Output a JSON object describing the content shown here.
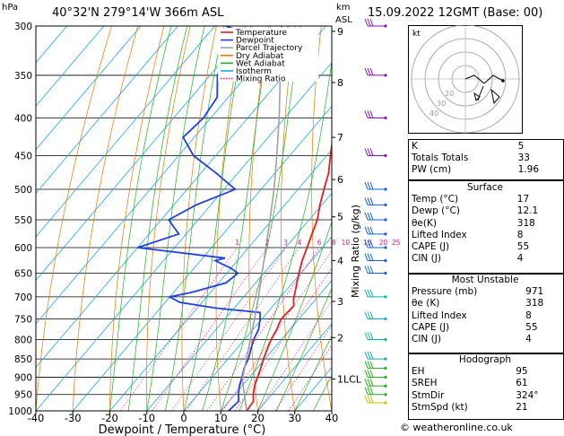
{
  "header": {
    "station": "40°32'N 279°14'W 366m ASL",
    "date": "15.09.2022 12GMT (Base: 00)",
    "p_unit": "hPa",
    "km_unit": "km",
    "asl": "ASL",
    "footer": "© weatheronline.co.uk"
  },
  "chart_data": {
    "type": "line",
    "title": "",
    "xlabel": "Dewpoint / Temperature (°C)",
    "ylabel": "Mixing Ratio (g/kg)",
    "xlim": [
      -40,
      40
    ],
    "ylim": [
      1000,
      300
    ],
    "y_scale": "log",
    "pressure_ticks": [
      300,
      350,
      400,
      450,
      500,
      550,
      600,
      650,
      700,
      750,
      800,
      850,
      900,
      950,
      1000
    ],
    "temp_ticks": [
      -40,
      -30,
      -20,
      -10,
      0,
      10,
      20,
      30,
      40
    ],
    "km_ticks": [
      {
        "km": "9",
        "p": 305
      },
      {
        "km": "8",
        "p": 358
      },
      {
        "km": "7",
        "p": 425
      },
      {
        "km": "6",
        "p": 485
      },
      {
        "km": "5",
        "p": 545
      },
      {
        "km": "4",
        "p": 625
      },
      {
        "km": "3",
        "p": 710
      },
      {
        "km": "2",
        "p": 795
      },
      {
        "km": "1LCL",
        "p": 905
      }
    ],
    "mixing_ratio_labels": [
      "1",
      "2",
      "3",
      "4",
      "6",
      "8",
      "10",
      "15",
      "20",
      "25"
    ],
    "legend": [
      "Temperature",
      "Dewpoint",
      "Parcel Trajectory",
      "Dry Adiabat",
      "Wet Adiabat",
      "Isotherm",
      "Mixing Ratio"
    ],
    "legend_position": "top-left",
    "series": [
      {
        "name": "Temperature",
        "color": "#e02020",
        "points": [
          [
            1000,
            17
          ],
          [
            970,
            16.6
          ],
          [
            950,
            15
          ],
          [
            925,
            13.4
          ],
          [
            900,
            12.2
          ],
          [
            875,
            11
          ],
          [
            850,
            9.6
          ],
          [
            825,
            8.4
          ],
          [
            800,
            7.2
          ],
          [
            775,
            6.4
          ],
          [
            750,
            5.2
          ],
          [
            720,
            5.6
          ],
          [
            705,
            4
          ],
          [
            680,
            2
          ],
          [
            650,
            -0.5
          ],
          [
            625,
            -2.5
          ],
          [
            600,
            -4.2
          ],
          [
            575,
            -6
          ],
          [
            550,
            -7.8
          ],
          [
            525,
            -10.5
          ],
          [
            500,
            -13
          ],
          [
            475,
            -15.5
          ],
          [
            450,
            -19
          ],
          [
            425,
            -22.5
          ],
          [
            400,
            -26.5
          ],
          [
            375,
            -30.5
          ],
          [
            350,
            -34.5
          ],
          [
            325,
            -39.5
          ],
          [
            306,
            -41.5
          ],
          [
            300,
            -42.5
          ]
        ]
      },
      {
        "name": "Dewpoint",
        "color": "#2040e0",
        "points": [
          [
            1000,
            12.1
          ],
          [
            970,
            12.6
          ],
          [
            950,
            11
          ],
          [
            925,
            9.3
          ],
          [
            900,
            8
          ],
          [
            875,
            6.5
          ],
          [
            850,
            5.5
          ],
          [
            825,
            4
          ],
          [
            800,
            2.5
          ],
          [
            775,
            1.5
          ],
          [
            750,
            -0.5
          ],
          [
            735,
            -2
          ],
          [
            725,
            -15
          ],
          [
            712,
            -26
          ],
          [
            700,
            -30
          ],
          [
            690,
            -25
          ],
          [
            670,
            -18
          ],
          [
            650,
            -17
          ],
          [
            640,
            -20
          ],
          [
            630,
            -24
          ],
          [
            625,
            -26
          ],
          [
            620,
            -24
          ],
          [
            600,
            -50
          ],
          [
            575,
            -42
          ],
          [
            550,
            -48
          ],
          [
            525,
            -44
          ],
          [
            500,
            -37
          ],
          [
            475,
            -46
          ],
          [
            450,
            -56
          ],
          [
            425,
            -63
          ],
          [
            400,
            -62
          ],
          [
            375,
            -63
          ],
          [
            350,
            -68
          ],
          [
            325,
            -70
          ],
          [
            305,
            -72
          ],
          [
            300,
            -77
          ]
        ]
      },
      {
        "name": "Parcel Trajectory",
        "color": "#a0a0a0",
        "points": [
          [
            1000,
            17
          ],
          [
            950,
            12.6
          ],
          [
            905,
            8.5
          ],
          [
            850,
            5
          ],
          [
            800,
            1.6
          ],
          [
            750,
            -2
          ],
          [
            700,
            -6
          ],
          [
            650,
            -10.5
          ],
          [
            600,
            -15.3
          ],
          [
            550,
            -20.6
          ],
          [
            500,
            -26.5
          ],
          [
            450,
            -33.5
          ],
          [
            400,
            -41.5
          ],
          [
            350,
            -51
          ],
          [
            300,
            -62
          ]
        ]
      }
    ]
  },
  "hodograph": {
    "label": "kt",
    "rings": [
      "10",
      "20",
      "30",
      "40"
    ]
  },
  "indices": {
    "k": {
      "label": "K",
      "value": "5"
    },
    "tt": {
      "label": "Totals Totals",
      "value": "33"
    },
    "pw": {
      "label": "PW (cm)",
      "value": "1.96"
    }
  },
  "surface": {
    "title": "Surface",
    "rows": [
      {
        "label": "Temp (°C)",
        "value": "17"
      },
      {
        "label": "Dewp (°C)",
        "value": "12.1"
      },
      {
        "label": "θe(K)",
        "value": "318"
      },
      {
        "label": "Lifted Index",
        "value": "8"
      },
      {
        "label": "CAPE (J)",
        "value": "55"
      },
      {
        "label": "CIN (J)",
        "value": "4"
      }
    ]
  },
  "most_unstable": {
    "title": "Most Unstable",
    "rows": [
      {
        "label": "Pressure (mb)",
        "value": "971"
      },
      {
        "label": "θe (K)",
        "value": "318"
      },
      {
        "label": "Lifted Index",
        "value": "8"
      },
      {
        "label": "CAPE (J)",
        "value": "55"
      },
      {
        "label": "CIN (J)",
        "value": "4"
      }
    ]
  },
  "hodo_table": {
    "title": "Hodograph",
    "rows": [
      {
        "label": "EH",
        "value": "95"
      },
      {
        "label": "SREH",
        "value": "61"
      },
      {
        "label": "StmDir",
        "value": "324°"
      },
      {
        "label": "StmSpd (kt)",
        "value": "21"
      }
    ]
  }
}
